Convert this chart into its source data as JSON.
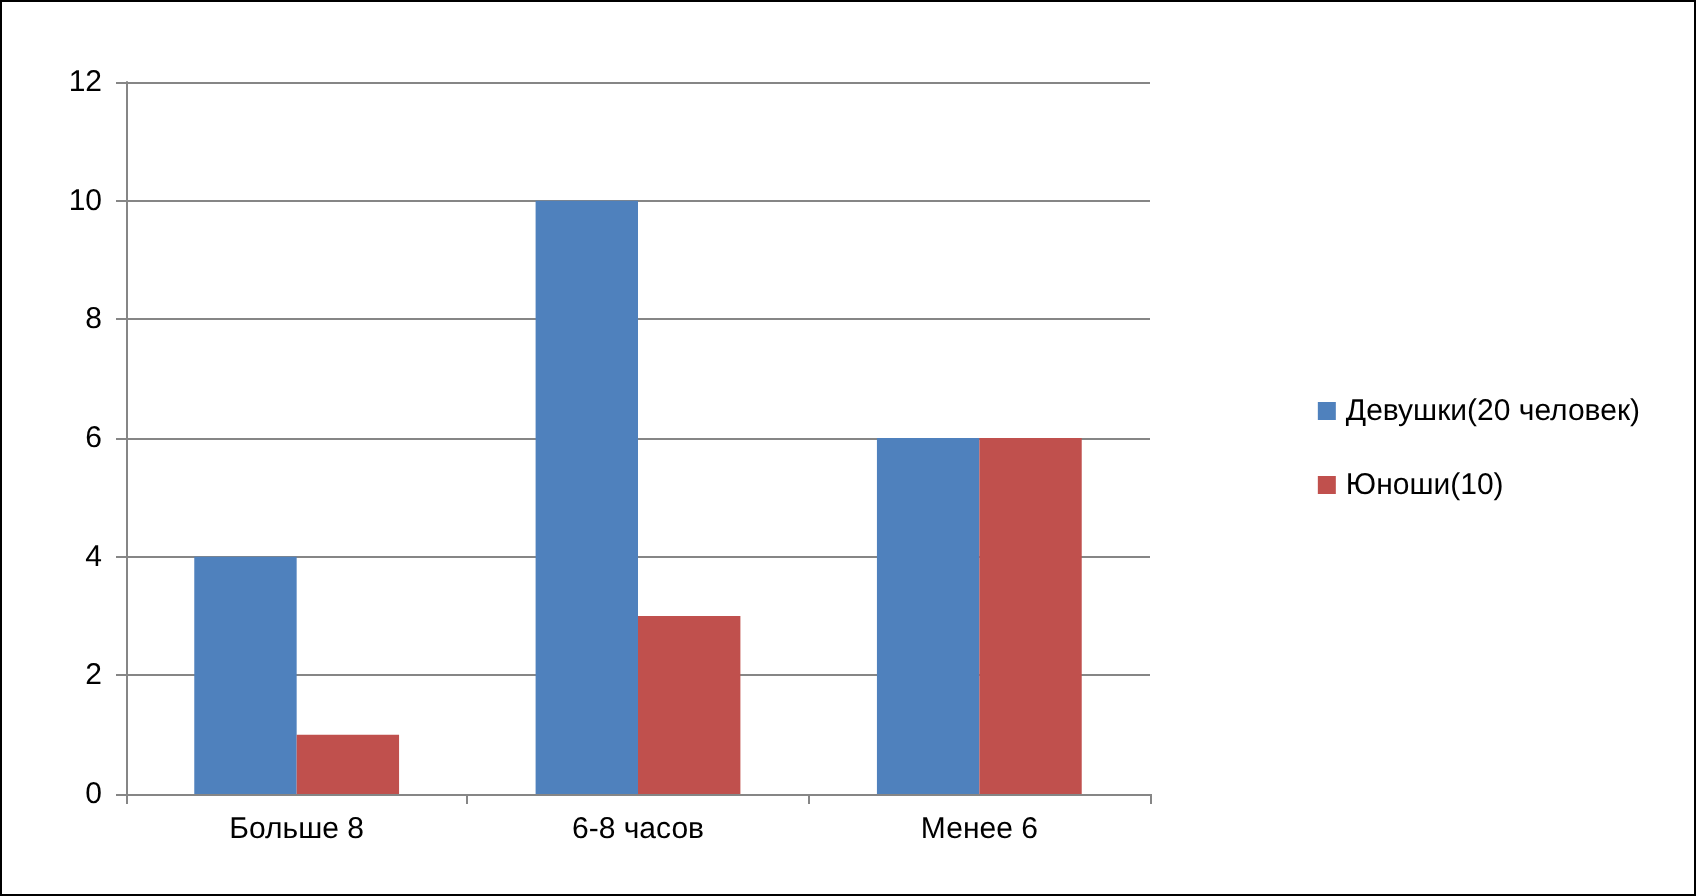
{
  "chart_data": {
    "type": "bar",
    "categories": [
      "Больше 8",
      "6-8 часов",
      "Менее 6"
    ],
    "series": [
      {
        "name": "Девушки(20 человек)",
        "color": "#4f81bd",
        "values": [
          4,
          10,
          6
        ]
      },
      {
        "name": "Юноши(10)",
        "color": "#c0504d",
        "values": [
          1,
          3,
          6
        ]
      }
    ],
    "ylim": [
      0,
      12
    ],
    "yticks": [
      0,
      2,
      4,
      6,
      8,
      10,
      12
    ],
    "grid": "y",
    "legend": "right"
  }
}
